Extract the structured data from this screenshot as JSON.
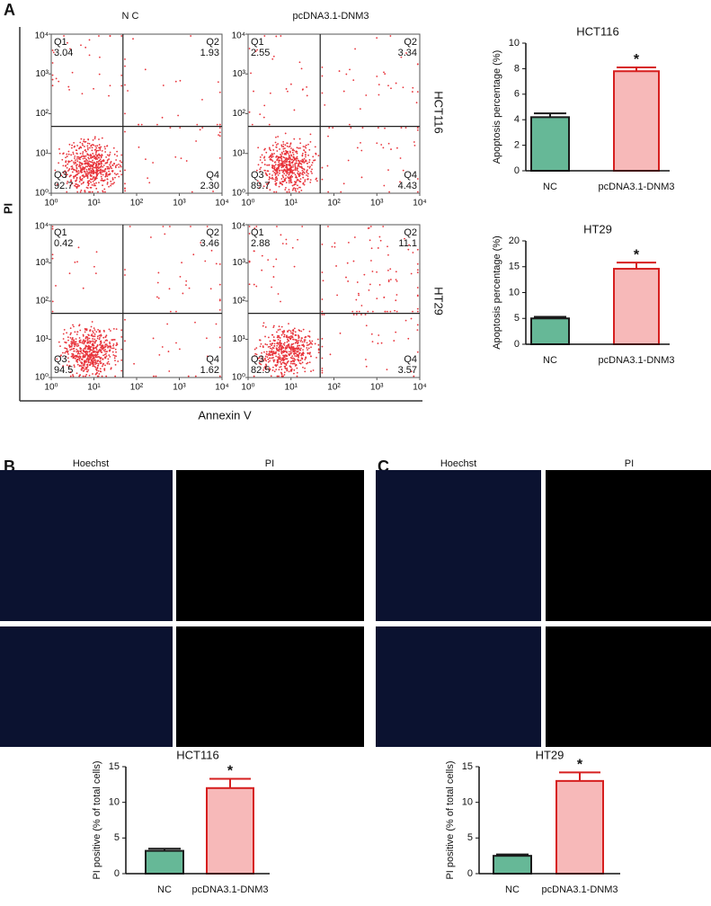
{
  "figure": {
    "panel_labels": [
      "A",
      "B",
      "C"
    ],
    "flow_columns": [
      "N C",
      "pcDNA3.1-DNM3"
    ],
    "flow_rows": [
      "HCT116",
      "HT29"
    ],
    "flow_ylabel": "PI",
    "flow_xlabel": "Annexin V",
    "image_panels": [
      {
        "channels": [
          "Hoechst",
          "PI"
        ]
      },
      {
        "channels": [
          "Hoechst",
          "PI"
        ]
      }
    ]
  },
  "chart_data": [
    {
      "type": "flow",
      "xscale": "log",
      "yscale": "log",
      "xlim": [
        1,
        10000
      ],
      "ylim": [
        1,
        10000
      ],
      "color": "#e8333a",
      "xticks": [
        {
          "value": 1,
          "label": "10⁰"
        },
        {
          "value": 10,
          "label": "10¹"
        },
        {
          "value": 100,
          "label": "10²"
        },
        {
          "value": 1000,
          "label": "10³"
        },
        {
          "value": 10000,
          "label": "10⁴"
        }
      ],
      "yticks": [
        {
          "value": 1,
          "label": "10⁰"
        },
        {
          "value": 10,
          "label": "10¹"
        },
        {
          "value": 100,
          "label": "10²"
        },
        {
          "value": 1000,
          "label": "10³"
        },
        {
          "value": 10000,
          "label": "10⁴"
        }
      ],
      "quadrants": [
        {
          "name": "Q1",
          "value": 3.04
        },
        {
          "name": "Q2",
          "value": 1.93
        },
        {
          "name": "Q3",
          "value": 92.7
        },
        {
          "name": "Q4",
          "value": 2.3,
          "label": "2.30"
        }
      ]
    },
    {
      "type": "flow",
      "xscale": "log",
      "yscale": "log",
      "xlim": [
        1,
        10000
      ],
      "ylim": [
        1,
        10000
      ],
      "color": "#e8333a",
      "xticks": [
        {
          "value": 1,
          "label": "10⁰"
        },
        {
          "value": 10,
          "label": "10¹"
        },
        {
          "value": 100,
          "label": "10²"
        },
        {
          "value": 1000,
          "label": "10³"
        },
        {
          "value": 10000,
          "label": "10⁴"
        }
      ],
      "yticks": [
        {
          "value": 1,
          "label": "10⁰"
        },
        {
          "value": 10,
          "label": "10¹"
        },
        {
          "value": 100,
          "label": "10²"
        },
        {
          "value": 1000,
          "label": "10³"
        },
        {
          "value": 10000,
          "label": "10⁴"
        }
      ],
      "quadrants": [
        {
          "name": "Q1",
          "value": 2.55
        },
        {
          "name": "Q2",
          "value": 3.34
        },
        {
          "name": "Q3",
          "value": 89.7
        },
        {
          "name": "Q4",
          "value": 4.43
        }
      ]
    },
    {
      "type": "flow",
      "xscale": "log",
      "yscale": "log",
      "xlim": [
        1,
        10000
      ],
      "ylim": [
        1,
        10000
      ],
      "color": "#e8333a",
      "xticks": [
        {
          "value": 1,
          "label": "10⁰"
        },
        {
          "value": 10,
          "label": "10¹"
        },
        {
          "value": 100,
          "label": "10²"
        },
        {
          "value": 1000,
          "label": "10³"
        },
        {
          "value": 10000,
          "label": "10⁴"
        }
      ],
      "yticks": [
        {
          "value": 1,
          "label": "10⁰"
        },
        {
          "value": 10,
          "label": "10¹"
        },
        {
          "value": 100,
          "label": "10²"
        },
        {
          "value": 1000,
          "label": "10³"
        },
        {
          "value": 10000,
          "label": "10⁴"
        }
      ],
      "quadrants": [
        {
          "name": "Q1",
          "value": 0.42
        },
        {
          "name": "Q2",
          "value": 3.46
        },
        {
          "name": "Q3",
          "value": 94.5
        },
        {
          "name": "Q4",
          "value": 1.62
        }
      ]
    },
    {
      "type": "flow",
      "xscale": "log",
      "yscale": "log",
      "xlim": [
        1,
        10000
      ],
      "ylim": [
        1,
        10000
      ],
      "color": "#e8333a",
      "xticks": [
        {
          "value": 1,
          "label": "10⁰"
        },
        {
          "value": 10,
          "label": "10¹"
        },
        {
          "value": 100,
          "label": "10²"
        },
        {
          "value": 1000,
          "label": "10³"
        },
        {
          "value": 10000,
          "label": "10⁴"
        }
      ],
      "yticks": [
        {
          "value": 1,
          "label": "10⁰"
        },
        {
          "value": 10,
          "label": "10¹"
        },
        {
          "value": 100,
          "label": "10²"
        },
        {
          "value": 1000,
          "label": "10³"
        },
        {
          "value": 10000,
          "label": "10⁴"
        }
      ],
      "quadrants": [
        {
          "name": "Q1",
          "value": 2.88
        },
        {
          "name": "Q2",
          "value": 11.1
        },
        {
          "name": "Q3",
          "value": 82.5
        },
        {
          "name": "Q4",
          "value": 3.57
        }
      ]
    },
    {
      "type": "bar",
      "title": "HCT116",
      "ylabel": "Apoptosis percentage (%)",
      "categories": [
        "NC",
        "pcDNA3.1-DNM3"
      ],
      "values": [
        4.2,
        7.8
      ],
      "errors": [
        0.3,
        0.3
      ],
      "colors": [
        "#66b897",
        "#f7b9b9"
      ],
      "edgecolors": [
        "#1a1a1a",
        "#d61f1f"
      ],
      "ylim": [
        0,
        10
      ],
      "yticks": [
        0,
        2,
        4,
        6,
        8,
        10
      ],
      "annotations": [
        "*"
      ]
    },
    {
      "type": "bar",
      "title": "HT29",
      "ylabel": "Apoptosis percentage (%)",
      "categories": [
        "NC",
        "pcDNA3.1-DNM3"
      ],
      "values": [
        5.0,
        14.6
      ],
      "errors": [
        0.3,
        1.2
      ],
      "colors": [
        "#66b897",
        "#f7b9b9"
      ],
      "edgecolors": [
        "#1a1a1a",
        "#d61f1f"
      ],
      "ylim": [
        0,
        20
      ],
      "yticks": [
        0,
        5,
        10,
        15,
        20
      ],
      "annotations": [
        "*"
      ]
    },
    {
      "type": "bar",
      "title": "HCT116",
      "ylabel": "PI positive (% of total cells)",
      "categories": [
        "NC",
        "pcDNA3.1-DNM3"
      ],
      "values": [
        3.2,
        12.0
      ],
      "errors": [
        0.3,
        1.3
      ],
      "colors": [
        "#66b897",
        "#f7b9b9"
      ],
      "edgecolors": [
        "#1a1a1a",
        "#d61f1f"
      ],
      "ylim": [
        0,
        15
      ],
      "yticks": [
        0,
        5,
        10,
        15
      ],
      "annotations": [
        "*"
      ]
    },
    {
      "type": "bar",
      "title": "HT29",
      "ylabel": "PI positive (% of total cells)",
      "categories": [
        "NC",
        "pcDNA3.1-DNM3"
      ],
      "values": [
        2.5,
        13.0
      ],
      "errors": [
        0.2,
        1.2
      ],
      "colors": [
        "#66b897",
        "#f7b9b9"
      ],
      "edgecolors": [
        "#1a1a1a",
        "#d61f1f"
      ],
      "ylim": [
        0,
        15
      ],
      "yticks": [
        0,
        5,
        10,
        15
      ],
      "annotations": [
        "*"
      ]
    }
  ]
}
